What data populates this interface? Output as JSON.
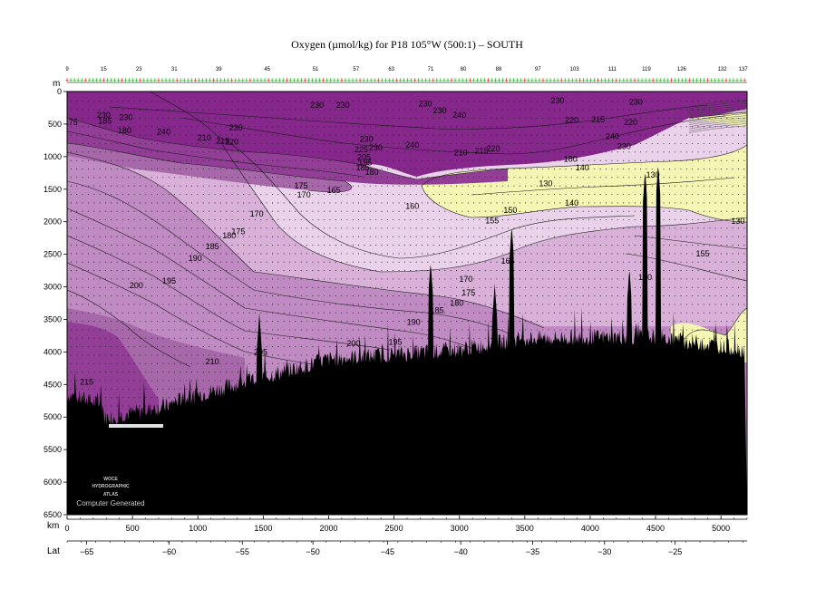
{
  "chart_data": {
    "type": "heatmap",
    "title": "Oxygen (µmol/kg) for P18 105°W (500:1) – SOUTH",
    "xlabel": "km",
    "ylabel": "m",
    "lat_label": "Lat",
    "xlim": [
      0,
      5200
    ],
    "ylim": [
      0,
      6500
    ],
    "x_ticks": [
      0,
      500,
      1000,
      1500,
      2000,
      2500,
      3000,
      3500,
      4000,
      4500,
      5000
    ],
    "y_ticks": [
      0,
      500,
      1000,
      1500,
      2000,
      2500,
      3000,
      3500,
      4000,
      4500,
      5000,
      5500,
      6000,
      6500
    ],
    "lat_ticks": [
      {
        "km": 150,
        "label": "−65"
      },
      {
        "km": 780,
        "label": "−60"
      },
      {
        "km": 1340,
        "label": "−55"
      },
      {
        "km": 1880,
        "label": "−50"
      },
      {
        "km": 2450,
        "label": "−45"
      },
      {
        "km": 3010,
        "label": "−40"
      },
      {
        "km": 3560,
        "label": "−35"
      },
      {
        "km": 4110,
        "label": "−30"
      },
      {
        "km": 4650,
        "label": "−25"
      }
    ],
    "station_labels": [
      {
        "km": 0,
        "label": "9"
      },
      {
        "km": 280,
        "label": "15"
      },
      {
        "km": 550,
        "label": "23"
      },
      {
        "km": 820,
        "label": "31"
      },
      {
        "km": 1160,
        "label": "39"
      },
      {
        "km": 1530,
        "label": "45"
      },
      {
        "km": 1900,
        "label": "51"
      },
      {
        "km": 2210,
        "label": "57"
      },
      {
        "km": 2480,
        "label": "63"
      },
      {
        "km": 2780,
        "label": "71"
      },
      {
        "km": 3030,
        "label": "80"
      },
      {
        "km": 3300,
        "label": "88"
      },
      {
        "km": 3600,
        "label": "97"
      },
      {
        "km": 3880,
        "label": "103"
      },
      {
        "km": 4170,
        "label": "111"
      },
      {
        "km": 4430,
        "label": "119"
      },
      {
        "km": 4700,
        "label": "126"
      },
      {
        "km": 5010,
        "label": "132"
      },
      {
        "km": 5170,
        "label": "137"
      }
    ],
    "color_bands": [
      {
        "range": "<140",
        "color": "#f6f6b4"
      },
      {
        "range": "140–160",
        "color": "#ebd2eb"
      },
      {
        "range": "160–180",
        "color": "#d8b0d8"
      },
      {
        "range": "180–200",
        "color": "#c08ac2"
      },
      {
        "range": "200–220",
        "color": "#a768aa"
      },
      {
        "range": "220–240",
        "color": "#923e96"
      },
      {
        "range": ">240",
        "color": "#86278c"
      }
    ],
    "contour_labels": [
      {
        "km": 30,
        "depth": 470,
        "label": "175"
      },
      {
        "km": 280,
        "depth": 360,
        "label": "230"
      },
      {
        "km": 290,
        "depth": 450,
        "label": "185"
      },
      {
        "km": 450,
        "depth": 400,
        "label": "230"
      },
      {
        "km": 440,
        "depth": 600,
        "label": "180"
      },
      {
        "km": 740,
        "depth": 620,
        "label": "240"
      },
      {
        "km": 1050,
        "depth": 710,
        "label": "210"
      },
      {
        "km": 1190,
        "depth": 760,
        "label": "215"
      },
      {
        "km": 1260,
        "depth": 770,
        "label": "220"
      },
      {
        "km": 1290,
        "depth": 560,
        "label": "230"
      },
      {
        "km": 1910,
        "depth": 210,
        "label": "230"
      },
      {
        "km": 2110,
        "depth": 210,
        "label": "230"
      },
      {
        "km": 2290,
        "depth": 730,
        "label": "230"
      },
      {
        "km": 2250,
        "depth": 890,
        "label": "225"
      },
      {
        "km": 2360,
        "depth": 860,
        "label": "230"
      },
      {
        "km": 2270,
        "depth": 1010,
        "label": "205"
      },
      {
        "km": 2280,
        "depth": 1090,
        "label": "195"
      },
      {
        "km": 2260,
        "depth": 1170,
        "label": "185"
      },
      {
        "km": 2330,
        "depth": 1240,
        "label": "180"
      },
      {
        "km": 2640,
        "depth": 820,
        "label": "240"
      },
      {
        "km": 2740,
        "depth": 190,
        "label": "230"
      },
      {
        "km": 2850,
        "depth": 290,
        "label": "230"
      },
      {
        "km": 3000,
        "depth": 360,
        "label": "240"
      },
      {
        "km": 3010,
        "depth": 940,
        "label": "210"
      },
      {
        "km": 3170,
        "depth": 910,
        "label": "215"
      },
      {
        "km": 3260,
        "depth": 880,
        "label": "220"
      },
      {
        "km": 3750,
        "depth": 140,
        "label": "230"
      },
      {
        "km": 3860,
        "depth": 440,
        "label": "220"
      },
      {
        "km": 4060,
        "depth": 430,
        "label": "215"
      },
      {
        "km": 4350,
        "depth": 160,
        "label": "230"
      },
      {
        "km": 4310,
        "depth": 470,
        "label": "220"
      },
      {
        "km": 4170,
        "depth": 690,
        "label": "240"
      },
      {
        "km": 4260,
        "depth": 840,
        "label": "230"
      },
      {
        "km": 3850,
        "depth": 1040,
        "label": "180"
      },
      {
        "km": 3940,
        "depth": 1170,
        "label": "140"
      },
      {
        "km": 4480,
        "depth": 1280,
        "label": "130"
      },
      {
        "km": 3660,
        "depth": 1410,
        "label": "130"
      },
      {
        "km": 3860,
        "depth": 1710,
        "label": "140"
      },
      {
        "km": 3390,
        "depth": 1820,
        "label": "150"
      },
      {
        "km": 3250,
        "depth": 1980,
        "label": "155"
      },
      {
        "km": 2640,
        "depth": 1760,
        "label": "160"
      },
      {
        "km": 1790,
        "depth": 1450,
        "label": "175"
      },
      {
        "km": 1810,
        "depth": 1590,
        "label": "170"
      },
      {
        "km": 2040,
        "depth": 1520,
        "label": "165"
      },
      {
        "km": 1450,
        "depth": 1880,
        "label": "170"
      },
      {
        "km": 1310,
        "depth": 2150,
        "label": "175"
      },
      {
        "km": 1240,
        "depth": 2210,
        "label": "180"
      },
      {
        "km": 1110,
        "depth": 2380,
        "label": "185"
      },
      {
        "km": 980,
        "depth": 2560,
        "label": "190"
      },
      {
        "km": 780,
        "depth": 2910,
        "label": "195"
      },
      {
        "km": 530,
        "depth": 2980,
        "label": "200"
      },
      {
        "km": 1480,
        "depth": 4000,
        "label": "205"
      },
      {
        "km": 1110,
        "depth": 4150,
        "label": "210"
      },
      {
        "km": 150,
        "depth": 4460,
        "label": "215"
      },
      {
        "km": 2190,
        "depth": 3870,
        "label": "200"
      },
      {
        "km": 2510,
        "depth": 3850,
        "label": "195"
      },
      {
        "km": 2650,
        "depth": 3540,
        "label": "190"
      },
      {
        "km": 2830,
        "depth": 3360,
        "label": "185"
      },
      {
        "km": 2980,
        "depth": 3250,
        "label": "180"
      },
      {
        "km": 3070,
        "depth": 3090,
        "label": "175"
      },
      {
        "km": 3050,
        "depth": 2880,
        "label": "170"
      },
      {
        "km": 3370,
        "depth": 2600,
        "label": "165"
      },
      {
        "km": 4420,
        "depth": 2850,
        "label": "160"
      },
      {
        "km": 4860,
        "depth": 2490,
        "label": "155"
      },
      {
        "km": 5130,
        "depth": 1990,
        "label": "130"
      }
    ],
    "bottom_depth_note": "seafloor shown in black",
    "grid": false
  },
  "logo": {
    "line1": "WOCE",
    "line2": "HYDROGRAPHIC",
    "line3": "ATLAS",
    "caption": "Computer Generated"
  }
}
